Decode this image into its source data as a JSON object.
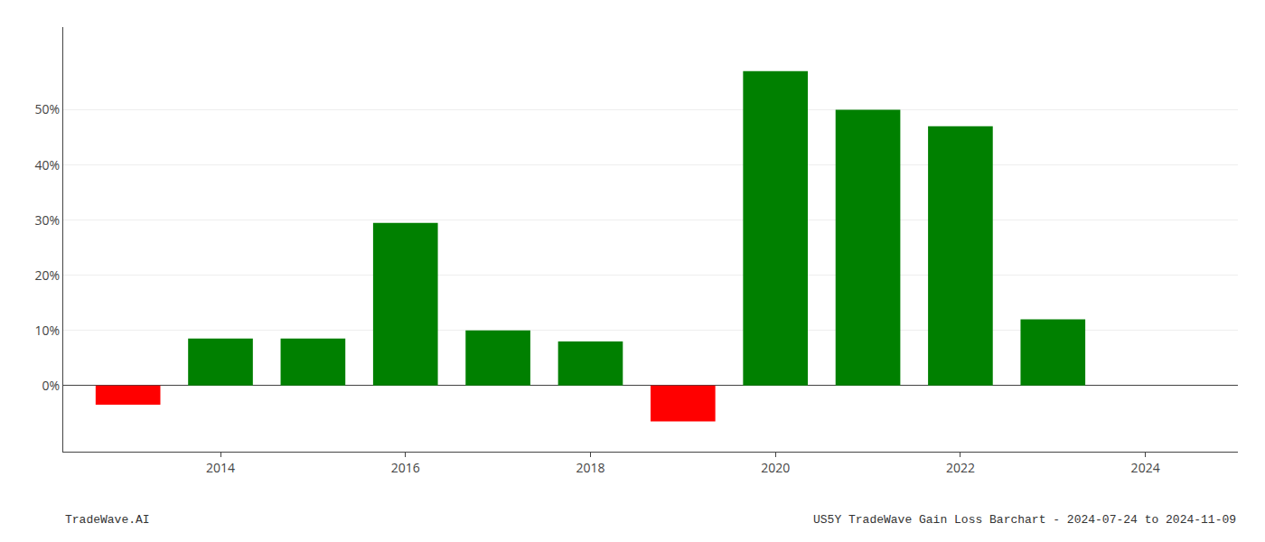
{
  "chart_data": {
    "type": "bar",
    "x": [
      2013,
      2014,
      2015,
      2016,
      2017,
      2018,
      2019,
      2020,
      2021,
      2022,
      2023
    ],
    "values": [
      -3.5,
      8.5,
      8.5,
      29.5,
      10.0,
      8.0,
      -6.5,
      57.0,
      50.0,
      47.0,
      12.0
    ],
    "colors": [
      "#ff0000",
      "#008000",
      "#008000",
      "#008000",
      "#008000",
      "#008000",
      "#ff0000",
      "#008000",
      "#008000",
      "#008000",
      "#008000"
    ],
    "xlim": [
      2012.3,
      2025.0
    ],
    "xticks": [
      2014,
      2016,
      2018,
      2020,
      2022,
      2024
    ],
    "ylim": [
      -12,
      65
    ],
    "yticks": [
      {
        "value": 0,
        "label": "0%"
      },
      {
        "value": 10,
        "label": "10%"
      },
      {
        "value": 20,
        "label": "20%"
      },
      {
        "value": 30,
        "label": "30%"
      },
      {
        "value": 40,
        "label": "40%"
      },
      {
        "value": 50,
        "label": "50%"
      }
    ],
    "grid": true,
    "annotations": [
      "TradeWave.AI",
      "US5Y TradeWave Gain Loss Barchart - 2024-07-24 to 2024-11-09"
    ]
  }
}
